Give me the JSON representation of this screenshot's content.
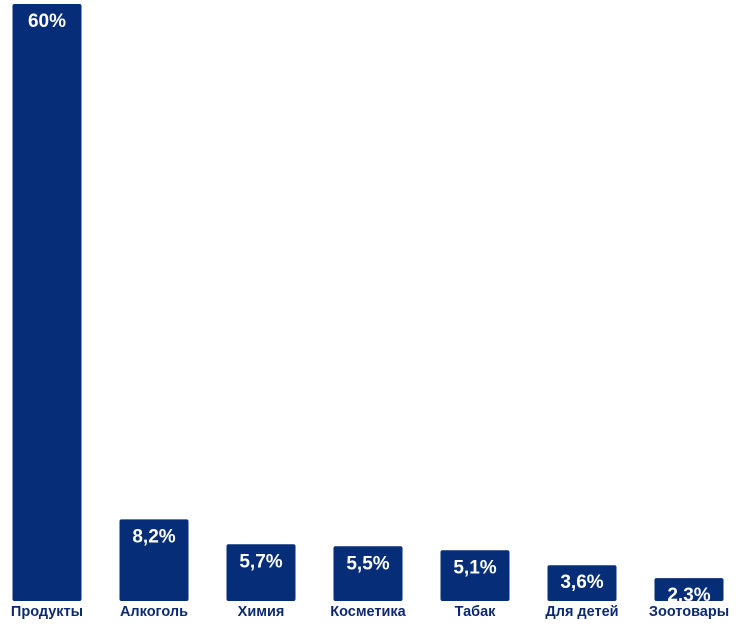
{
  "chart_data": {
    "type": "bar",
    "categories": [
      "Продукты",
      "Алкоголь",
      "Химия",
      "Косметика",
      "Табак",
      "Для детей",
      "Зоотовары"
    ],
    "values": [
      60,
      8.2,
      5.7,
      5.5,
      5.1,
      3.6,
      2.3
    ],
    "value_labels": [
      "60%",
      "8,2%",
      "5,7%",
      "5,5%",
      "5,1%",
      "3,6%",
      "2,3%"
    ],
    "title": "",
    "xlabel": "",
    "ylabel": "",
    "ylim": [
      0,
      60
    ],
    "grid": false,
    "legend": "none"
  },
  "colors": {
    "bar": "#062d77",
    "value_text": "#ffffff",
    "category_text": "#0e2a6e"
  }
}
